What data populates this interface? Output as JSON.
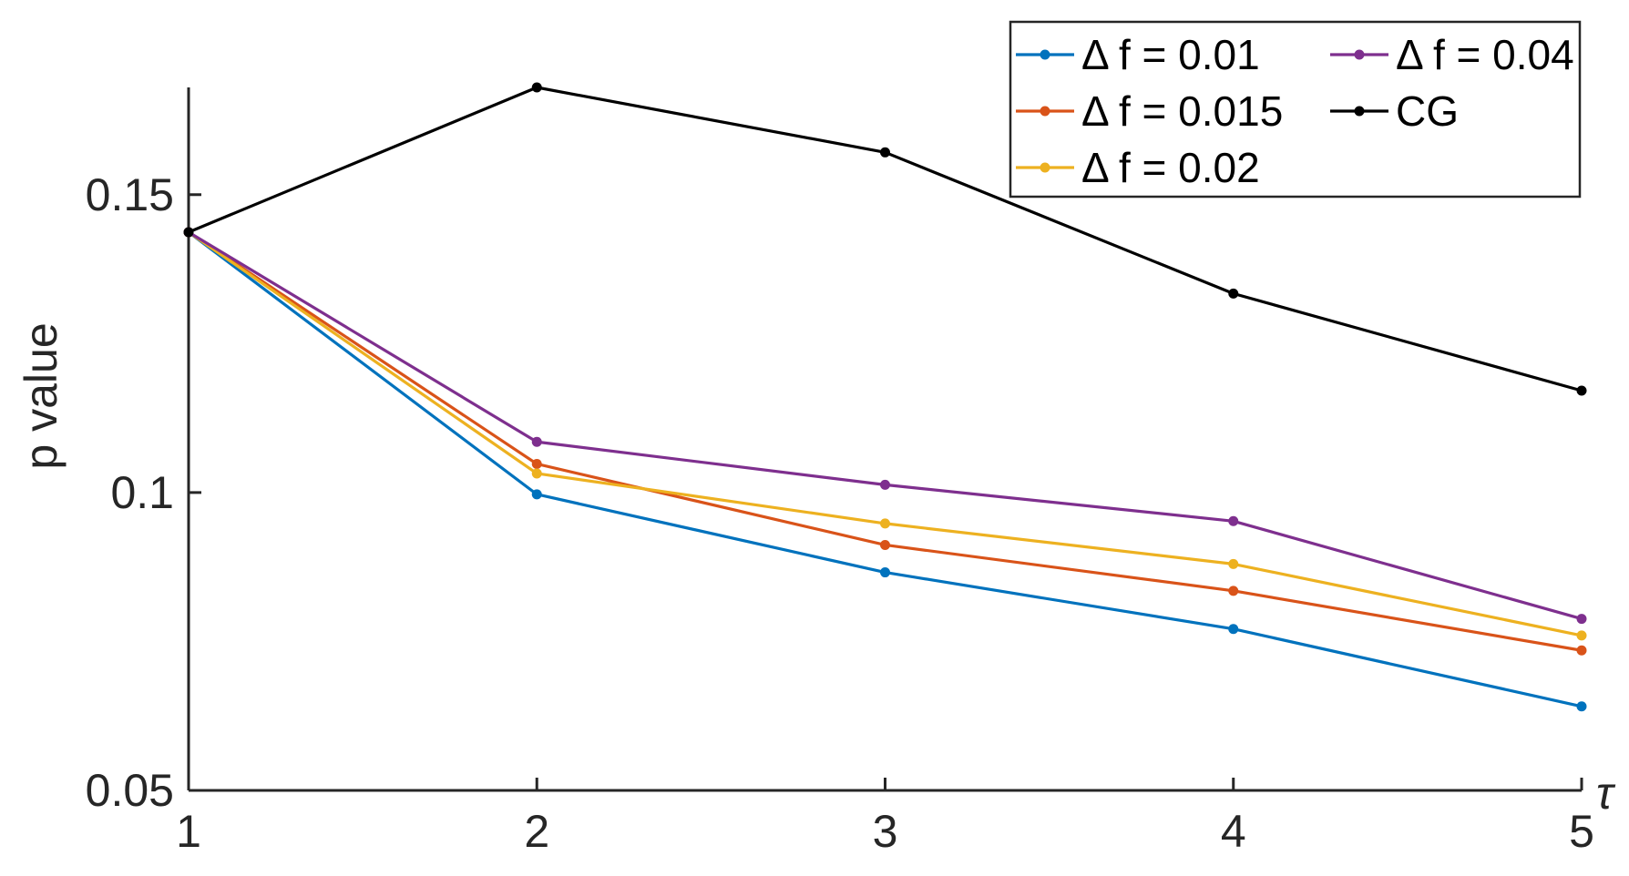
{
  "chart_data": {
    "type": "line",
    "title": "",
    "xlabel": "τ",
    "ylabel": "p value",
    "x": [
      1,
      2,
      3,
      4,
      5
    ],
    "xlim": [
      1,
      5
    ],
    "ylim": [
      0.05,
      0.168
    ],
    "xticks": [
      "1",
      "2",
      "3",
      "4",
      "5"
    ],
    "yticks": [
      "0.05",
      "0.1",
      "0.15"
    ],
    "grid": false,
    "legend_position": "top-right",
    "series": [
      {
        "name": "Δ f = 0.01",
        "color": "#0072BD",
        "values": [
          0.1437,
          0.0997,
          0.0866,
          0.0771,
          0.0641
        ]
      },
      {
        "name": "Δ f = 0.015",
        "color": "#D95319",
        "values": [
          0.1437,
          0.1048,
          0.0912,
          0.0835,
          0.0735
        ]
      },
      {
        "name": "Δ f = 0.02",
        "color": "#EDB120",
        "values": [
          0.1437,
          0.1032,
          0.0948,
          0.088,
          0.076
        ]
      },
      {
        "name": "Δ f = 0.04",
        "color": "#7E2F8E",
        "values": [
          0.1437,
          0.1085,
          0.1013,
          0.0952,
          0.0788
        ]
      },
      {
        "name": "CG",
        "color": "#000000",
        "values": [
          0.1437,
          0.168,
          0.1571,
          0.1334,
          0.1171
        ]
      }
    ]
  }
}
